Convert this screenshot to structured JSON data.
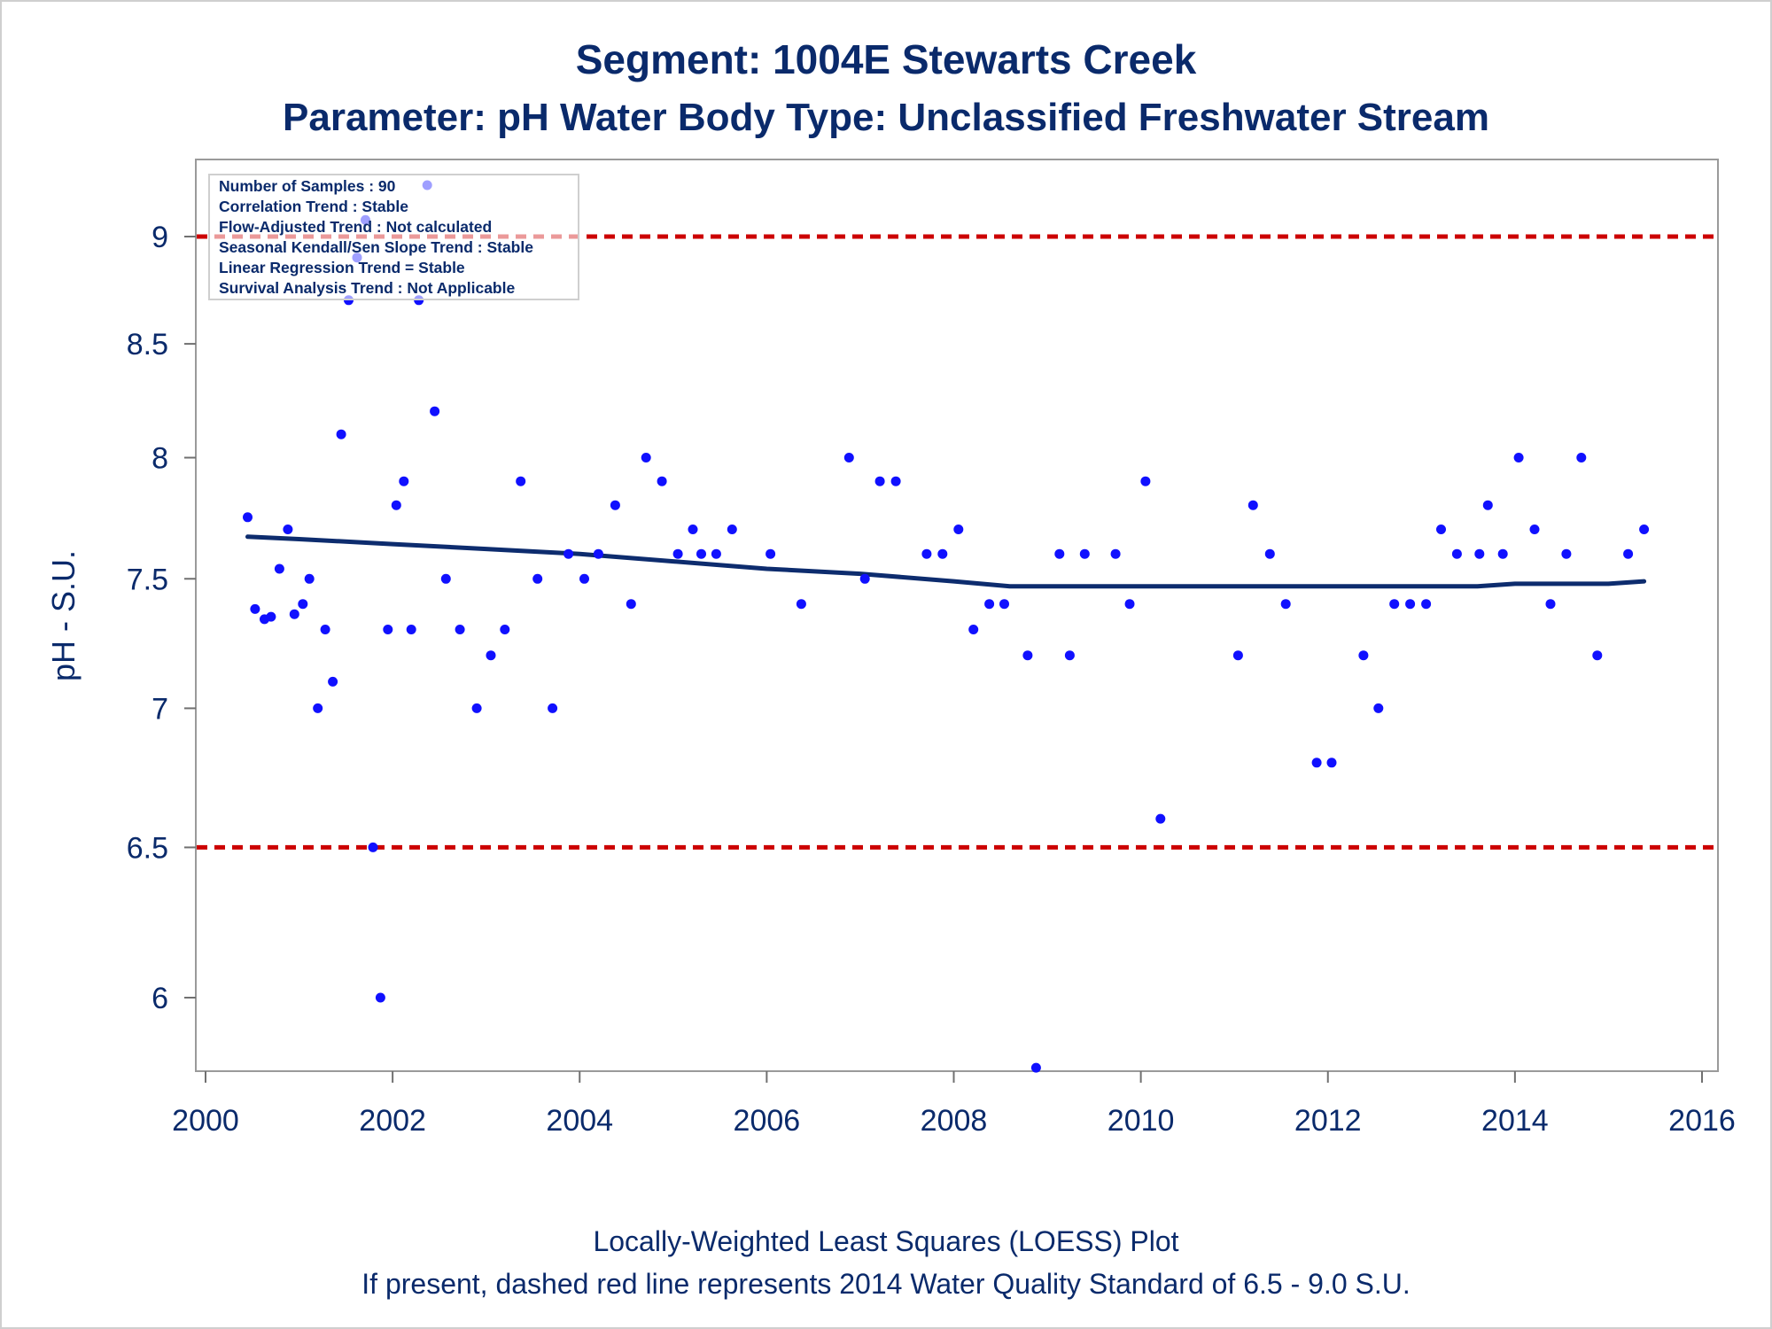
{
  "colors": {
    "text": "#0a2a6b",
    "points": "#1010ff",
    "loess": "#0d2c6e",
    "standard": "#cc0000",
    "frame": "#9a9a9a"
  },
  "chart_data": {
    "type": "scatter",
    "title": "Segment: 1004E  Stewarts Creek",
    "subtitle": "Parameter: pH   Water Body Type: Unclassified Freshwater Stream",
    "ylabel": "pH - S.U.",
    "xlabel": "",
    "y_scale": "log",
    "xlim": [
      1999.9,
      2016.1
    ],
    "ylim": [
      5.75,
      9.35
    ],
    "x_ticks": [
      2000,
      2002,
      2004,
      2006,
      2008,
      2010,
      2012,
      2014,
      2016
    ],
    "y_ticks": [
      6,
      6.5,
      7,
      7.5,
      8,
      8.5,
      9
    ],
    "x_tick_labels": [
      "2000",
      "2002",
      "2004",
      "2006",
      "2008",
      "2010",
      "2012",
      "2014",
      "2016"
    ],
    "y_tick_labels": [
      "6",
      "6.5",
      "7",
      "7.5",
      "8",
      "8.5",
      "9"
    ],
    "grid": false,
    "legend": "none",
    "points": [
      [
        2000.45,
        7.75
      ],
      [
        2000.53,
        7.38
      ],
      [
        2000.63,
        7.34
      ],
      [
        2000.7,
        7.35
      ],
      [
        2000.79,
        7.54
      ],
      [
        2000.88,
        7.7
      ],
      [
        2000.95,
        7.36
      ],
      [
        2001.04,
        7.4
      ],
      [
        2001.11,
        7.5
      ],
      [
        2001.2,
        7.0
      ],
      [
        2001.28,
        7.3
      ],
      [
        2001.36,
        7.1
      ],
      [
        2001.45,
        8.1
      ],
      [
        2001.53,
        8.7
      ],
      [
        2001.62,
        8.9
      ],
      [
        2001.71,
        9.08
      ],
      [
        2001.79,
        6.5
      ],
      [
        2001.87,
        6.0
      ],
      [
        2001.95,
        7.3
      ],
      [
        2002.04,
        7.8
      ],
      [
        2002.12,
        7.9
      ],
      [
        2002.2,
        7.3
      ],
      [
        2002.28,
        8.7
      ],
      [
        2002.37,
        9.25
      ],
      [
        2002.45,
        8.2
      ],
      [
        2002.57,
        7.5
      ],
      [
        2002.72,
        7.3
      ],
      [
        2002.9,
        7.0
      ],
      [
        2003.05,
        7.2
      ],
      [
        2003.2,
        7.3
      ],
      [
        2003.37,
        7.9
      ],
      [
        2003.55,
        7.5
      ],
      [
        2003.71,
        7.0
      ],
      [
        2003.88,
        7.6
      ],
      [
        2004.05,
        7.5
      ],
      [
        2004.2,
        7.6
      ],
      [
        2004.38,
        7.8
      ],
      [
        2004.55,
        7.4
      ],
      [
        2004.71,
        8.0
      ],
      [
        2004.88,
        7.9
      ],
      [
        2005.05,
        7.6
      ],
      [
        2005.21,
        7.7
      ],
      [
        2005.3,
        7.6
      ],
      [
        2005.46,
        7.6
      ],
      [
        2005.63,
        7.7
      ],
      [
        2006.04,
        7.6
      ],
      [
        2006.37,
        7.4
      ],
      [
        2006.88,
        8.0
      ],
      [
        2007.05,
        7.5
      ],
      [
        2007.21,
        7.9
      ],
      [
        2007.38,
        7.9
      ],
      [
        2007.71,
        7.6
      ],
      [
        2007.88,
        7.6
      ],
      [
        2008.05,
        7.7
      ],
      [
        2008.21,
        7.3
      ],
      [
        2008.38,
        7.4
      ],
      [
        2008.54,
        7.4
      ],
      [
        2008.79,
        7.2
      ],
      [
        2008.88,
        5.78
      ],
      [
        2009.13,
        7.6
      ],
      [
        2009.24,
        7.2
      ],
      [
        2009.4,
        7.6
      ],
      [
        2009.73,
        7.6
      ],
      [
        2009.88,
        7.4
      ],
      [
        2010.05,
        7.9
      ],
      [
        2010.21,
        6.6
      ],
      [
        2011.04,
        7.2
      ],
      [
        2011.2,
        7.8
      ],
      [
        2011.38,
        7.6
      ],
      [
        2011.55,
        7.4
      ],
      [
        2011.88,
        6.8
      ],
      [
        2012.04,
        6.8
      ],
      [
        2012.38,
        7.2
      ],
      [
        2012.54,
        7.0
      ],
      [
        2012.71,
        7.4
      ],
      [
        2012.88,
        7.4
      ],
      [
        2013.05,
        7.4
      ],
      [
        2013.21,
        7.7
      ],
      [
        2013.38,
        7.6
      ],
      [
        2013.62,
        7.6
      ],
      [
        2013.71,
        7.8
      ],
      [
        2013.87,
        7.6
      ],
      [
        2014.04,
        8.0
      ],
      [
        2014.21,
        7.7
      ],
      [
        2014.38,
        7.4
      ],
      [
        2014.55,
        7.6
      ],
      [
        2014.71,
        8.0
      ],
      [
        2014.88,
        7.2
      ],
      [
        2015.21,
        7.6
      ],
      [
        2015.38,
        7.7
      ]
    ],
    "loess": [
      [
        2000.45,
        7.67
      ],
      [
        2001.0,
        7.66
      ],
      [
        2002.0,
        7.64
      ],
      [
        2003.0,
        7.62
      ],
      [
        2004.0,
        7.6
      ],
      [
        2005.0,
        7.57
      ],
      [
        2006.0,
        7.54
      ],
      [
        2007.0,
        7.52
      ],
      [
        2008.0,
        7.49
      ],
      [
        2008.6,
        7.47
      ],
      [
        2009.0,
        7.47
      ],
      [
        2010.0,
        7.47
      ],
      [
        2011.0,
        7.47
      ],
      [
        2012.0,
        7.47
      ],
      [
        2013.0,
        7.47
      ],
      [
        2013.6,
        7.47
      ],
      [
        2014.0,
        7.48
      ],
      [
        2014.5,
        7.48
      ],
      [
        2015.0,
        7.48
      ],
      [
        2015.38,
        7.49
      ]
    ],
    "standard_lines": [
      9.0,
      6.5
    ],
    "annotations": [
      "Number of Samples : 90",
      "Correlation Trend : Stable",
      "Flow-Adjusted Trend : Not calculated",
      "Seasonal Kendall/Sen Slope Trend : Stable",
      "Linear Regression Trend = Stable",
      "Survival Analysis Trend : Not Applicable"
    ],
    "footnotes": [
      "Locally-Weighted Least Squares (LOESS) Plot",
      "If present, dashed red line represents 2014 Water Quality Standard of 6.5 - 9.0 S.U."
    ]
  }
}
